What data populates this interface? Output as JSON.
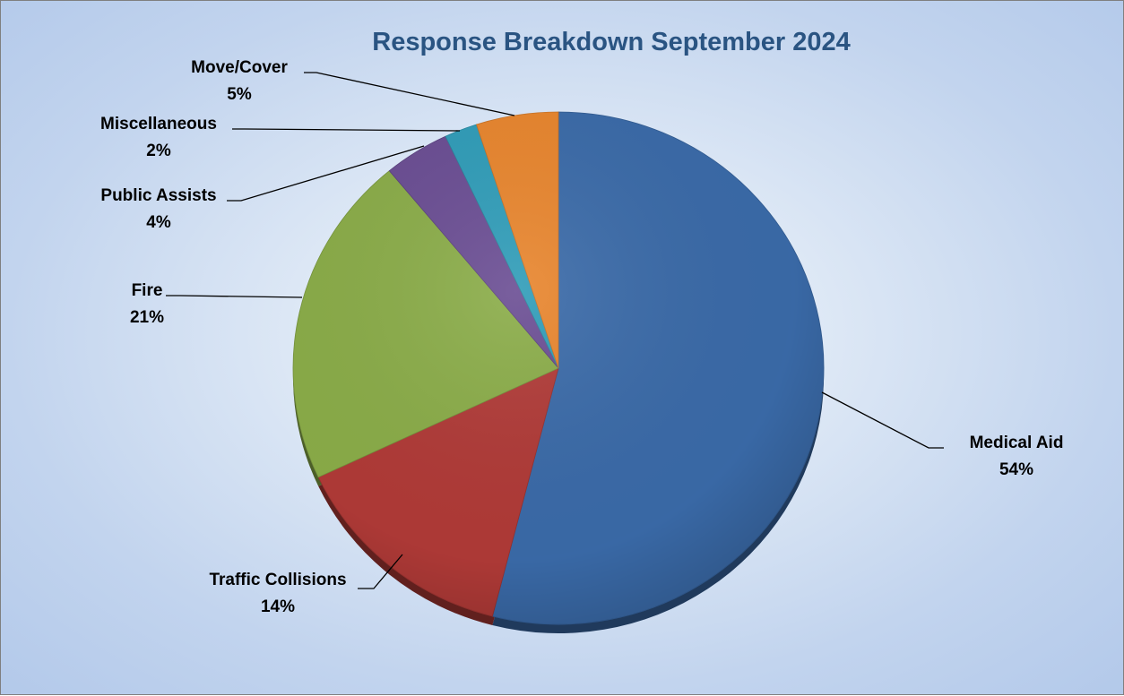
{
  "chart_data": {
    "type": "pie",
    "title": "Response Breakdown September 2024",
    "slices": [
      {
        "label": "Medical Aid",
        "value": 54,
        "pct_text": "54%",
        "color": "#3a6aa8"
      },
      {
        "label": "Traffic Collisions",
        "value": 14,
        "pct_text": "14%",
        "color": "#b03a37"
      },
      {
        "label": "Fire",
        "value": 21,
        "pct_text": "21%",
        "color": "#8aac48"
      },
      {
        "label": "Public Assists",
        "value": 4,
        "pct_text": "4%",
        "color": "#6a4d93"
      },
      {
        "label": "Miscellaneous",
        "value": 2,
        "pct_text": "2%",
        "color": "#2f9cb8"
      },
      {
        "label": "Move/Cover",
        "value": 5,
        "pct_text": "5%",
        "color": "#e8852d"
      }
    ],
    "start_angle": "12 o'clock",
    "direction": "clockwise",
    "legend": "none (data labels with leader lines)",
    "style": "3D-shaded pie"
  }
}
